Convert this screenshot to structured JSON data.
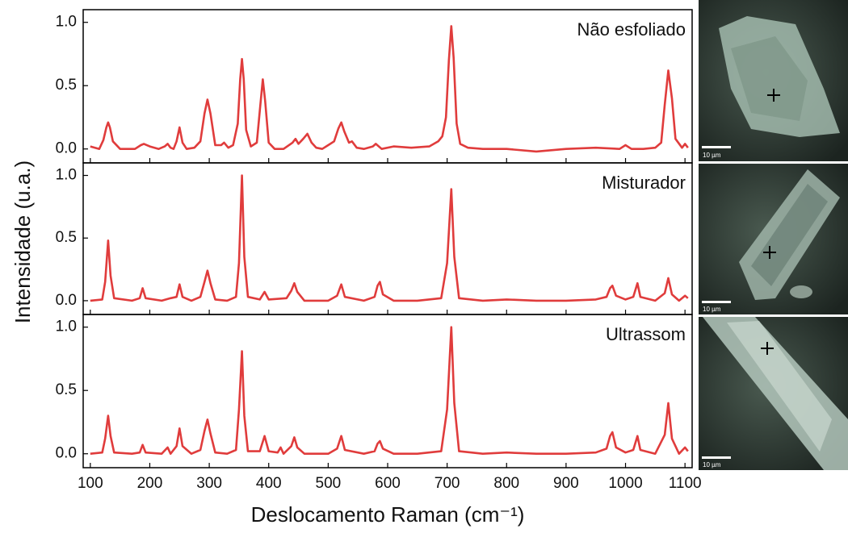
{
  "chart_data": [
    {
      "type": "line",
      "title": "Não esfoliado",
      "color": "#e03c3c",
      "x": [
        100,
        115,
        122,
        127,
        130,
        133,
        138,
        150,
        175,
        185,
        190,
        200,
        215,
        225,
        230,
        235,
        240,
        245,
        250,
        255,
        262,
        275,
        285,
        292,
        297,
        302,
        310,
        320,
        325,
        332,
        340,
        348,
        352,
        355,
        358,
        362,
        370,
        380,
        386,
        390,
        394,
        400,
        410,
        425,
        440,
        445,
        450,
        458,
        465,
        472,
        480,
        490,
        500,
        510,
        517,
        522,
        527,
        535,
        540,
        548,
        560,
        575,
        580,
        590,
        610,
        640,
        670,
        685,
        692,
        698,
        703,
        707,
        711,
        716,
        722,
        735,
        760,
        800,
        850,
        900,
        950,
        990,
        1000,
        1010,
        1030,
        1050,
        1060,
        1066,
        1072,
        1078,
        1084,
        1095,
        1100,
        1105
      ],
      "values": [
        0.02,
        0,
        0.07,
        0.17,
        0.21,
        0.17,
        0.06,
        0,
        0,
        0.03,
        0.04,
        0.02,
        0,
        0.02,
        0.04,
        0.01,
        0,
        0.06,
        0.17,
        0.05,
        0,
        0.01,
        0.06,
        0.28,
        0.39,
        0.28,
        0.03,
        0.03,
        0.05,
        0.01,
        0.03,
        0.2,
        0.55,
        0.71,
        0.55,
        0.15,
        0.02,
        0.05,
        0.35,
        0.55,
        0.38,
        0.05,
        0,
        0,
        0.05,
        0.08,
        0.04,
        0.08,
        0.12,
        0.05,
        0.01,
        0,
        0.03,
        0.06,
        0.16,
        0.21,
        0.14,
        0.05,
        0.06,
        0.01,
        0,
        0.02,
        0.04,
        0,
        0.02,
        0.01,
        0.02,
        0.06,
        0.1,
        0.25,
        0.7,
        0.97,
        0.72,
        0.2,
        0.04,
        0.01,
        0,
        0,
        -0.02,
        0,
        0.01,
        0,
        0.03,
        0,
        0,
        0.01,
        0.05,
        0.35,
        0.62,
        0.4,
        0.08,
        0.01,
        0.04,
        0.01
      ],
      "xlim": [
        88,
        1112
      ],
      "xticks": [
        100,
        200,
        300,
        400,
        500,
        600,
        700,
        800,
        900,
        1000,
        1100
      ],
      "ylim": [
        -0.11,
        1.1
      ],
      "yticks": [
        {
          "value": 0,
          "label": "0.0"
        },
        0.5,
        {
          "value": 1,
          "label": "1.0"
        }
      ]
    },
    {
      "type": "line",
      "title": "Misturador",
      "color": "#e03c3c",
      "ylabel": "Intensidade (u.a.)",
      "x": [
        100,
        120,
        125,
        130,
        134,
        140,
        170,
        183,
        188,
        193,
        220,
        235,
        245,
        250,
        255,
        270,
        285,
        292,
        297,
        302,
        310,
        330,
        345,
        350,
        355,
        359,
        365,
        385,
        393,
        400,
        430,
        438,
        443,
        448,
        460,
        500,
        515,
        522,
        528,
        560,
        578,
        583,
        587,
        592,
        610,
        650,
        690,
        700,
        707,
        712,
        720,
        760,
        800,
        850,
        900,
        950,
        968,
        974,
        978,
        984,
        1000,
        1013,
        1020,
        1025,
        1050,
        1066,
        1072,
        1078,
        1090,
        1100,
        1105
      ],
      "values": [
        0,
        0.01,
        0.15,
        0.48,
        0.2,
        0.02,
        0,
        0.02,
        0.1,
        0.02,
        0,
        0.02,
        0.03,
        0.13,
        0.03,
        0,
        0.03,
        0.15,
        0.24,
        0.14,
        0.01,
        0,
        0.03,
        0.3,
        1.0,
        0.35,
        0.03,
        0.01,
        0.07,
        0.01,
        0.02,
        0.08,
        0.14,
        0.07,
        0,
        0,
        0.04,
        0.13,
        0.03,
        0,
        0.03,
        0.12,
        0.15,
        0.05,
        0,
        0,
        0.02,
        0.3,
        0.89,
        0.35,
        0.02,
        0,
        0.01,
        0,
        0,
        0.01,
        0.03,
        0.1,
        0.12,
        0.04,
        0.01,
        0.03,
        0.14,
        0.03,
        0,
        0.06,
        0.18,
        0.05,
        0,
        0.04,
        0.02
      ],
      "xlim": [
        88,
        1112
      ],
      "xticks": [
        100,
        200,
        300,
        400,
        500,
        600,
        700,
        800,
        900,
        1000,
        1100
      ],
      "ylim": [
        -0.11,
        1.1
      ],
      "yticks": [
        {
          "value": 0,
          "label": "0.0"
        },
        0.5,
        {
          "value": 1,
          "label": "1.0"
        }
      ]
    },
    {
      "type": "line",
      "title": "Ultrassom",
      "color": "#e03c3c",
      "xlabel": "Deslocamento Raman (cm⁻¹)",
      "x": [
        100,
        120,
        125,
        130,
        134,
        140,
        170,
        183,
        188,
        193,
        220,
        230,
        235,
        245,
        250,
        255,
        270,
        285,
        292,
        297,
        302,
        310,
        330,
        345,
        350,
        355,
        359,
        365,
        385,
        393,
        400,
        415,
        420,
        425,
        438,
        443,
        448,
        460,
        500,
        515,
        522,
        528,
        560,
        578,
        583,
        587,
        592,
        610,
        650,
        690,
        700,
        707,
        712,
        720,
        760,
        800,
        850,
        900,
        950,
        968,
        974,
        978,
        984,
        1000,
        1013,
        1020,
        1025,
        1050,
        1066,
        1072,
        1078,
        1090,
        1100,
        1105
      ],
      "values": [
        0,
        0.01,
        0.12,
        0.3,
        0.14,
        0.01,
        0,
        0.01,
        0.07,
        0.01,
        0,
        0.05,
        0,
        0.06,
        0.2,
        0.06,
        0,
        0.03,
        0.18,
        0.27,
        0.16,
        0.01,
        0,
        0.03,
        0.35,
        0.81,
        0.3,
        0.02,
        0.02,
        0.14,
        0.02,
        0.01,
        0.05,
        0,
        0.06,
        0.13,
        0.05,
        0,
        0,
        0.04,
        0.14,
        0.03,
        0,
        0.02,
        0.08,
        0.1,
        0.04,
        0,
        0,
        0.02,
        0.35,
        1.0,
        0.4,
        0.02,
        0,
        0.01,
        0,
        0,
        0.01,
        0.04,
        0.14,
        0.17,
        0.05,
        0.01,
        0.03,
        0.14,
        0.03,
        0,
        0.15,
        0.4,
        0.12,
        0,
        0.05,
        0.02
      ],
      "xlim": [
        88,
        1112
      ],
      "xticks": [
        100,
        200,
        300,
        400,
        500,
        600,
        700,
        800,
        900,
        1000,
        1100
      ],
      "ylim": [
        -0.11,
        1.1
      ],
      "yticks": [
        {
          "value": 0,
          "label": "0.0"
        },
        0.5,
        {
          "value": 1,
          "label": "1.0"
        }
      ]
    }
  ],
  "micrographs": [
    {
      "scale_bar": "10 µm"
    },
    {
      "scale_bar": "10 µm"
    },
    {
      "scale_bar": "10 µm"
    }
  ]
}
